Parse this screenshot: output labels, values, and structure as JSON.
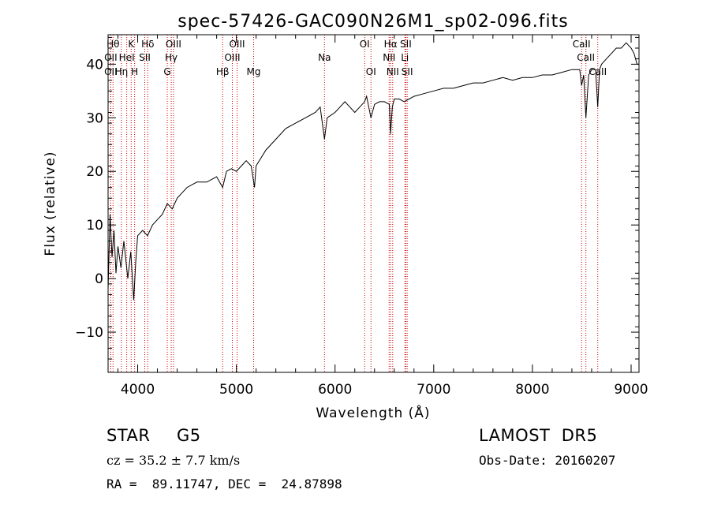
{
  "chart_data": {
    "type": "line",
    "title": "spec-57426-GAC090N26M1_sp02-096.fits",
    "xlabel": "Wavelength (Å)",
    "ylabel": "Flux (relative)",
    "xlim": [
      3700,
      9080
    ],
    "ylim": [
      -17.5,
      45.5
    ],
    "xticks": [
      4000,
      5000,
      6000,
      7000,
      8000,
      9000
    ],
    "yticks": [
      -10,
      0,
      10,
      20,
      30,
      40
    ],
    "grid": false,
    "series": [
      {
        "x": [
          3700,
          3720,
          3740,
          3760,
          3780,
          3800,
          3830,
          3860,
          3900,
          3930,
          3960,
          3980,
          4000,
          4050,
          4100,
          4150,
          4200,
          4250,
          4300,
          4350,
          4400,
          4450,
          4500,
          4600,
          4700,
          4800,
          4861,
          4900,
          4950,
          5000,
          5050,
          5100,
          5150,
          5184,
          5200,
          5300,
          5400,
          5500,
          5600,
          5700,
          5800,
          5850,
          5893,
          5920,
          6000,
          6050,
          6100,
          6150,
          6200,
          6250,
          6300,
          6320,
          6364,
          6400,
          6450,
          6500,
          6550,
          6563,
          6580,
          6600,
          6650,
          6700,
          6750,
          6800,
          6900,
          7000,
          7100,
          7200,
          7300,
          7400,
          7500,
          7600,
          7700,
          7800,
          7900,
          8000,
          8100,
          8200,
          8300,
          8400,
          8480,
          8498,
          8520,
          8542,
          8570,
          8600,
          8640,
          8662,
          8680,
          8700,
          8750,
          8800,
          8850,
          8900,
          8950,
          9000,
          9030,
          9060,
          9080
        ],
        "values": [
          -2,
          12,
          4,
          9,
          1,
          6,
          2,
          7,
          0,
          5,
          -4,
          3,
          8,
          9,
          8,
          10,
          11,
          12,
          14,
          13,
          15,
          16,
          17,
          18,
          18,
          19,
          17,
          20,
          20.5,
          20,
          21,
          22,
          21,
          17,
          21,
          24,
          26,
          28,
          29,
          30,
          31,
          32,
          26,
          30,
          31,
          32,
          33,
          32,
          31,
          32,
          33,
          34,
          30,
          32.5,
          33,
          33,
          32.5,
          27,
          32,
          33.5,
          33.5,
          33,
          33.5,
          34,
          34.5,
          35,
          35.5,
          35.5,
          36,
          36.5,
          36.5,
          37,
          37.5,
          37,
          37.5,
          37.5,
          38,
          38,
          38.5,
          39,
          39,
          36,
          38,
          30,
          38,
          39,
          39,
          32,
          39,
          40,
          41,
          42,
          43,
          43,
          44,
          43,
          42,
          40,
          40
        ]
      }
    ],
    "line_labels": [
      {
        "x": 3750,
        "text": "Hθ",
        "row": 0
      },
      {
        "x": 3727,
        "text": "OII",
        "row": 1
      },
      {
        "x": 3727,
        "text": "OII",
        "row": 2
      },
      {
        "x": 3835,
        "text": "Hη",
        "row": 2
      },
      {
        "x": 3889,
        "text": "HeI",
        "row": 1
      },
      {
        "x": 3934,
        "text": "K",
        "row": 0
      },
      {
        "x": 3969,
        "text": "H",
        "row": 2
      },
      {
        "x": 4072,
        "text": "SII",
        "row": 1
      },
      {
        "x": 4102,
        "text": "Hδ",
        "row": 0
      },
      {
        "x": 4300,
        "text": "G",
        "row": 2
      },
      {
        "x": 4340,
        "text": "Hγ",
        "row": 1
      },
      {
        "x": 4363,
        "text": "OIII",
        "row": 0
      },
      {
        "x": 4861,
        "text": "Hβ",
        "row": 2
      },
      {
        "x": 4959,
        "text": "OIII",
        "row": 1
      },
      {
        "x": 5007,
        "text": "OIII",
        "row": 0
      },
      {
        "x": 5175,
        "text": "Mg",
        "row": 2
      },
      {
        "x": 5893,
        "text": "Na",
        "row": 1
      },
      {
        "x": 6300,
        "text": "OI",
        "row": 0
      },
      {
        "x": 6364,
        "text": "OI",
        "row": 2
      },
      {
        "x": 6548,
        "text": "NII",
        "row": 1
      },
      {
        "x": 6563,
        "text": "Hα",
        "row": 0
      },
      {
        "x": 6584,
        "text": "NII",
        "row": 2
      },
      {
        "x": 6708,
        "text": "Li",
        "row": 1
      },
      {
        "x": 6717,
        "text": "SII",
        "row": 0
      },
      {
        "x": 6731,
        "text": "SII",
        "row": 2
      },
      {
        "x": 8498,
        "text": "CaII",
        "row": 0
      },
      {
        "x": 8542,
        "text": "CaII",
        "row": 1
      },
      {
        "x": 8662,
        "text": "CaII",
        "row": 2
      }
    ]
  },
  "info": {
    "class": "STAR",
    "subclass": "G5",
    "survey": "LAMOST  DR5",
    "redshift": "cz = 35.2 ± 7.7 km/s",
    "obs_date": "Obs-Date: 20160207",
    "coords": "RA =  89.11747, DEC =  24.87898"
  }
}
